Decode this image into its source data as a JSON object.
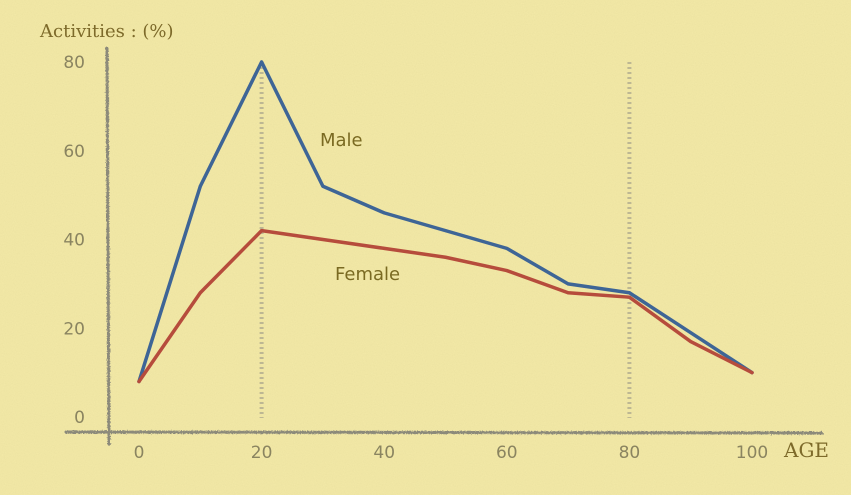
{
  "chart_data": {
    "type": "line",
    "title": "",
    "xlabel": "AGE",
    "ylabel": "Activities : (%)",
    "xlim": [
      0,
      100
    ],
    "ylim": [
      0,
      80
    ],
    "x_ticks": [
      "0",
      "20",
      "40",
      "60",
      "80",
      "100"
    ],
    "y_ticks": [
      "0",
      "20",
      "40",
      "60",
      "80"
    ],
    "grid": false,
    "reference_lines_x": [
      20,
      80
    ],
    "series": [
      {
        "name": "Male",
        "color": "#3e6596",
        "x": [
          0,
          10,
          20,
          30,
          40,
          50,
          60,
          70,
          80,
          90,
          100
        ],
        "values": [
          8,
          52,
          80,
          52,
          46,
          42,
          38,
          30,
          28,
          19,
          10
        ]
      },
      {
        "name": "Female",
        "color": "#b64c3c",
        "x": [
          0,
          10,
          20,
          30,
          40,
          50,
          60,
          70,
          80,
          90,
          100
        ],
        "values": [
          8,
          28,
          42,
          40,
          38,
          36,
          33,
          28,
          27,
          17,
          10
        ]
      }
    ]
  }
}
